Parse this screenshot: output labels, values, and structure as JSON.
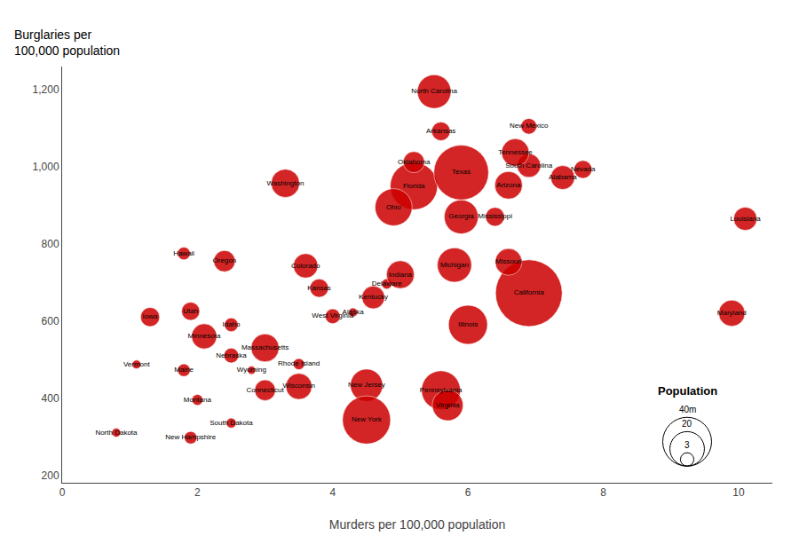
{
  "chart_data": {
    "type": "scatter",
    "xlabel": "Murders per 100,000 population",
    "ylabel": [
      "Burglaries per",
      "100,000 population"
    ],
    "labels": [
      "Alabama",
      "Alaska",
      "Arizona",
      "Arkansas",
      "California",
      "Colorado",
      "Connecticut",
      "Delaware",
      "Florida",
      "Georgia",
      "Hawaii",
      "Idaho",
      "Illinois",
      "Indiana",
      "Iowa",
      "Kansas",
      "Kentucky",
      "Louisiana",
      "Maine",
      "Maryland",
      "Massachusetts",
      "Michigan",
      "Minnesota",
      "Mississippi",
      "Missouri",
      "Montana",
      "Nebraska",
      "Nevada",
      "New Hampshire",
      "New Jersey",
      "New Mexico",
      "New York",
      "North Carolina",
      "North Dakota",
      "Ohio",
      "Oklahoma",
      "Oregon",
      "Pennsylvania",
      "Rhode Island",
      "South Carolina",
      "South Dakota",
      "Tennessee",
      "Texas",
      "Utah",
      "Vermont",
      "Virginia",
      "Washington",
      "West Virginia",
      "Wisconsin",
      "Wyoming"
    ],
    "x": [
      7.4,
      4.3,
      6.6,
      5.6,
      6.9,
      3.6,
      3.0,
      4.8,
      5.2,
      5.9,
      1.8,
      2.5,
      6.0,
      5.0,
      1.3,
      3.8,
      4.6,
      10.1,
      1.8,
      9.9,
      3.0,
      5.8,
      2.1,
      6.4,
      6.6,
      2.0,
      2.5,
      7.7,
      1.9,
      4.5,
      6.9,
      4.5,
      5.5,
      0.8,
      4.9,
      5.2,
      2.4,
      5.6,
      3.5,
      6.9,
      2.5,
      6.7,
      5.9,
      1.9,
      1.1,
      5.7,
      3.3,
      4.0,
      3.5,
      2.8
    ],
    "values": [
      972,
      622,
      952,
      1092,
      672,
      743,
      420,
      696,
      950,
      870,
      775,
      590,
      590,
      720,
      610,
      685,
      661,
      865,
      472,
      620,
      530,
      745,
      560,
      870,
      753,
      395,
      510,
      993,
      297,
      433,
      1105,
      343,
      1195,
      310,
      895,
      1012,
      755,
      420,
      488,
      1003,
      335,
      1037,
      985,
      625,
      487,
      381,
      957,
      612,
      430,
      472
    ],
    "sizes": [
      4.8,
      0.67,
      6.4,
      2.9,
      37.3,
      5.0,
      3.6,
      0.9,
      18.8,
      9.7,
      1.36,
      1.57,
      12.8,
      6.5,
      3.05,
      2.85,
      4.34,
      4.53,
      1.33,
      5.77,
      6.55,
      9.88,
      5.3,
      2.97,
      6.0,
      0.99,
      1.83,
      2.7,
      1.32,
      8.79,
      2.06,
      19.38,
      9.54,
      0.67,
      11.54,
      3.75,
      3.83,
      12.7,
      1.05,
      4.63,
      0.82,
      6.35,
      25.15,
      2.76,
      0.63,
      8.0,
      6.72,
      1.85,
      5.69,
      0.56
    ],
    "color": "#cc0000",
    "size_legend": {
      "title": "Population",
      "values": [
        3,
        20,
        40
      ],
      "labels": [
        "3",
        "20",
        "40m"
      ]
    },
    "xlim": [
      0,
      10.5
    ],
    "ylim": [
      180,
      1260
    ],
    "xticks": [
      0,
      2,
      4,
      6,
      8,
      10
    ],
    "yticks": [
      200,
      400,
      600,
      800,
      {
        "value": 1000,
        "label": "1,000"
      },
      {
        "value": 1200,
        "label": "1,200"
      }
    ],
    "grid": false
  }
}
